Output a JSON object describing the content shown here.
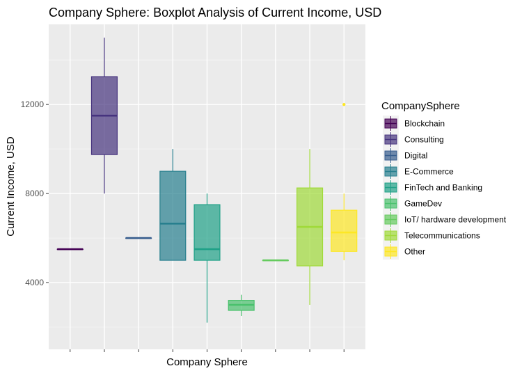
{
  "chart_data": {
    "type": "boxplot",
    "title": "Company Sphere: Boxplot Analysis of Current Income, USD",
    "xlabel": "Company Sphere",
    "ylabel": "Current Income, USD",
    "ylim": [
      1000,
      15600
    ],
    "yticks": [
      4000,
      8000,
      12000
    ],
    "ytick_labels": [
      "4000",
      "8000",
      "12000"
    ],
    "grid": true,
    "legend_title": "CompanySphere",
    "legend_position": "right",
    "categories": [
      "Blockchain",
      "Consulting",
      "Digital",
      "E-Commerce",
      "FinTech and Banking",
      "GameDev",
      "IoT/ hardware development",
      "Telecommunications",
      "Other"
    ],
    "colors": [
      "#440154",
      "#46337E",
      "#365C8D",
      "#277F8E",
      "#1FA187",
      "#4AC16D",
      "#65CB5E",
      "#A0DA39",
      "#FDE725"
    ],
    "boxes": [
      {
        "name": "Blockchain",
        "whisker_low": 5500,
        "q1": 5500,
        "median": 5500,
        "q3": 5500,
        "whisker_high": 5500,
        "outliers": []
      },
      {
        "name": "Consulting",
        "whisker_low": 8000,
        "q1": 9750,
        "median": 11500,
        "q3": 13250,
        "whisker_high": 15000,
        "outliers": []
      },
      {
        "name": "Digital",
        "whisker_low": 6000,
        "q1": 6000,
        "median": 6000,
        "q3": 6000,
        "whisker_high": 6000,
        "outliers": []
      },
      {
        "name": "E-Commerce",
        "whisker_low": 5000,
        "q1": 5000,
        "median": 6650,
        "q3": 9000,
        "whisker_high": 10000,
        "outliers": []
      },
      {
        "name": "FinTech and Banking",
        "whisker_low": 2200,
        "q1": 5000,
        "median": 5500,
        "q3": 7500,
        "whisker_high": 8000,
        "outliers": []
      },
      {
        "name": "GameDev",
        "whisker_low": 2500,
        "q1": 2750,
        "median": 3000,
        "q3": 3200,
        "whisker_high": 3450,
        "outliers": []
      },
      {
        "name": "IoT/ hardware development",
        "whisker_low": 5000,
        "q1": 5000,
        "median": 5000,
        "q3": 5000,
        "whisker_high": 5000,
        "outliers": []
      },
      {
        "name": "Telecommunications",
        "whisker_low": 3000,
        "q1": 4750,
        "median": 6500,
        "q3": 8250,
        "whisker_high": 10000,
        "outliers": []
      },
      {
        "name": "Other",
        "whisker_low": 5000,
        "q1": 5400,
        "median": 6250,
        "q3": 7250,
        "whisker_high": 8000,
        "outliers": [
          12000
        ]
      }
    ]
  }
}
